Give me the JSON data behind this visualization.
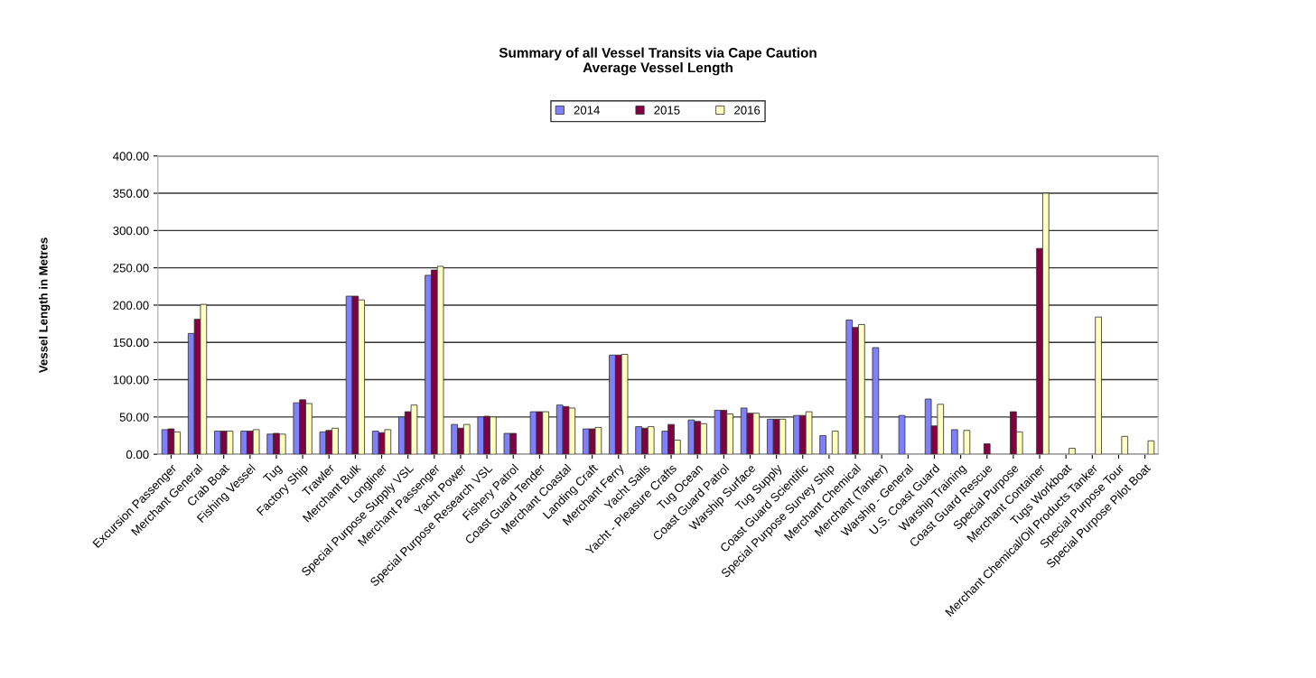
{
  "chart_data": {
    "type": "bar",
    "title": "Summary of all Vessel Transits via Cape Caution\nAverage Vessel Length",
    "ylabel": "Vessel Length in Metres",
    "categories": [
      "Excursion Passenger",
      "Merchant General",
      "Crab Boat",
      "Fishing Vessel",
      "Tug",
      "Factory Ship",
      "Trawler",
      "Merchant Bulk",
      "Longliner",
      "Special Purpose Supply VSL",
      "Merchant Passenger",
      "Yacht Power",
      "Special Purpose Research VSL",
      "Fishery Patrol",
      "Coast Guard Tender",
      "Merchant Coastal",
      "Landing Craft",
      "Merchant Ferry",
      "Yacht Sails",
      "Yacht - Pleasure Crafts",
      "Tug Ocean",
      "Coast Guard Patrol",
      "Warship Surface",
      "Tug Supply",
      "Coast Guard Scientific",
      "Special Purpose Survey Ship",
      "Merchant Chemical",
      "Merchant (Tanker)",
      "Warship - General",
      "U.S. Coast Guard",
      "Warship Training",
      "Coast Guard Rescue",
      "Special Purpose",
      "Merchant Container",
      "Tugs Workboat",
      "Merchant Chemical/Oil Products Tanker",
      "Special Purpose Tour",
      "Special Purpose Pilot Boat"
    ],
    "series": [
      {
        "name": "2014",
        "color": "#8080ff",
        "values": [
          33,
          162,
          31,
          31,
          27,
          69,
          30,
          212,
          31,
          50,
          240,
          40,
          50,
          28,
          57,
          66,
          34,
          133,
          37,
          31,
          46,
          59,
          62,
          47,
          52,
          25,
          180,
          143,
          52,
          74,
          33,
          null,
          null,
          null,
          null,
          null,
          null,
          null
        ]
      },
      {
        "name": "2015",
        "color": "#800040",
        "values": [
          34,
          181,
          31,
          31,
          28,
          73,
          32,
          212,
          29,
          57,
          247,
          35,
          51,
          28,
          57,
          64,
          34,
          133,
          35,
          40,
          44,
          59,
          55,
          47,
          52,
          null,
          170,
          null,
          null,
          38,
          null,
          14,
          57,
          276,
          null,
          null,
          null,
          null
        ]
      },
      {
        "name": "2016",
        "color": "#ffffc0",
        "values": [
          30,
          201,
          31,
          33,
          27,
          68,
          35,
          207,
          33,
          66,
          252,
          40,
          50,
          null,
          57,
          62,
          36,
          134,
          37,
          19,
          41,
          54,
          55,
          47,
          57,
          31,
          174,
          null,
          null,
          67,
          32,
          null,
          30,
          350,
          8,
          184,
          24,
          18
        ]
      }
    ],
    "ylim": [
      0,
      400
    ],
    "yticks": [
      {
        "value": 0,
        "label": "0.00"
      },
      {
        "value": 50,
        "label": "50.00"
      },
      {
        "value": 100,
        "label": "100.00"
      },
      {
        "value": 150,
        "label": "150.00"
      },
      {
        "value": 200,
        "label": "200.00"
      },
      {
        "value": 250,
        "label": "250.00"
      },
      {
        "value": 300,
        "label": "300.00"
      },
      {
        "value": 350,
        "label": "350.00"
      },
      {
        "value": 400,
        "label": "400.00"
      }
    ],
    "grid": "y",
    "legend": "top"
  }
}
